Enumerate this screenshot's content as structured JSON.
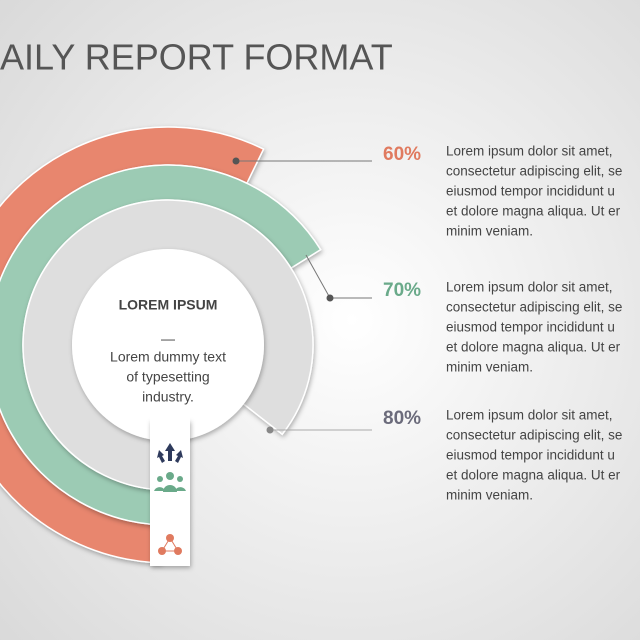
{
  "header": {
    "title": "AILY REPORT FORMAT"
  },
  "center": {
    "heading": "LOREM IPSUM",
    "dash": "—",
    "lines": [
      "Lorem dummy text",
      "of typesetting",
      "industry."
    ]
  },
  "items": [
    {
      "percent": "60%",
      "lines": [
        "Lorem ipsum dolor sit amet,",
        "consectetur adipiscing elit, se",
        "eiusmod tempor incididunt u",
        "et dolore magna aliqua. Ut er",
        "minim veniam."
      ]
    },
    {
      "percent": "70%",
      "lines": [
        "Lorem ipsum dolor sit amet,",
        "consectetur adipiscing elit, se",
        "eiusmod tempor incididunt u",
        "et dolore magna aliqua. Ut er",
        "minim veniam."
      ]
    },
    {
      "percent": "80%",
      "lines": [
        "Lorem ipsum dolor sit amet,",
        "consectetur adipiscing elit, se",
        "eiusmod tempor incididunt u",
        "et dolore magna aliqua. Ut er",
        "minim veniam."
      ]
    }
  ]
}
